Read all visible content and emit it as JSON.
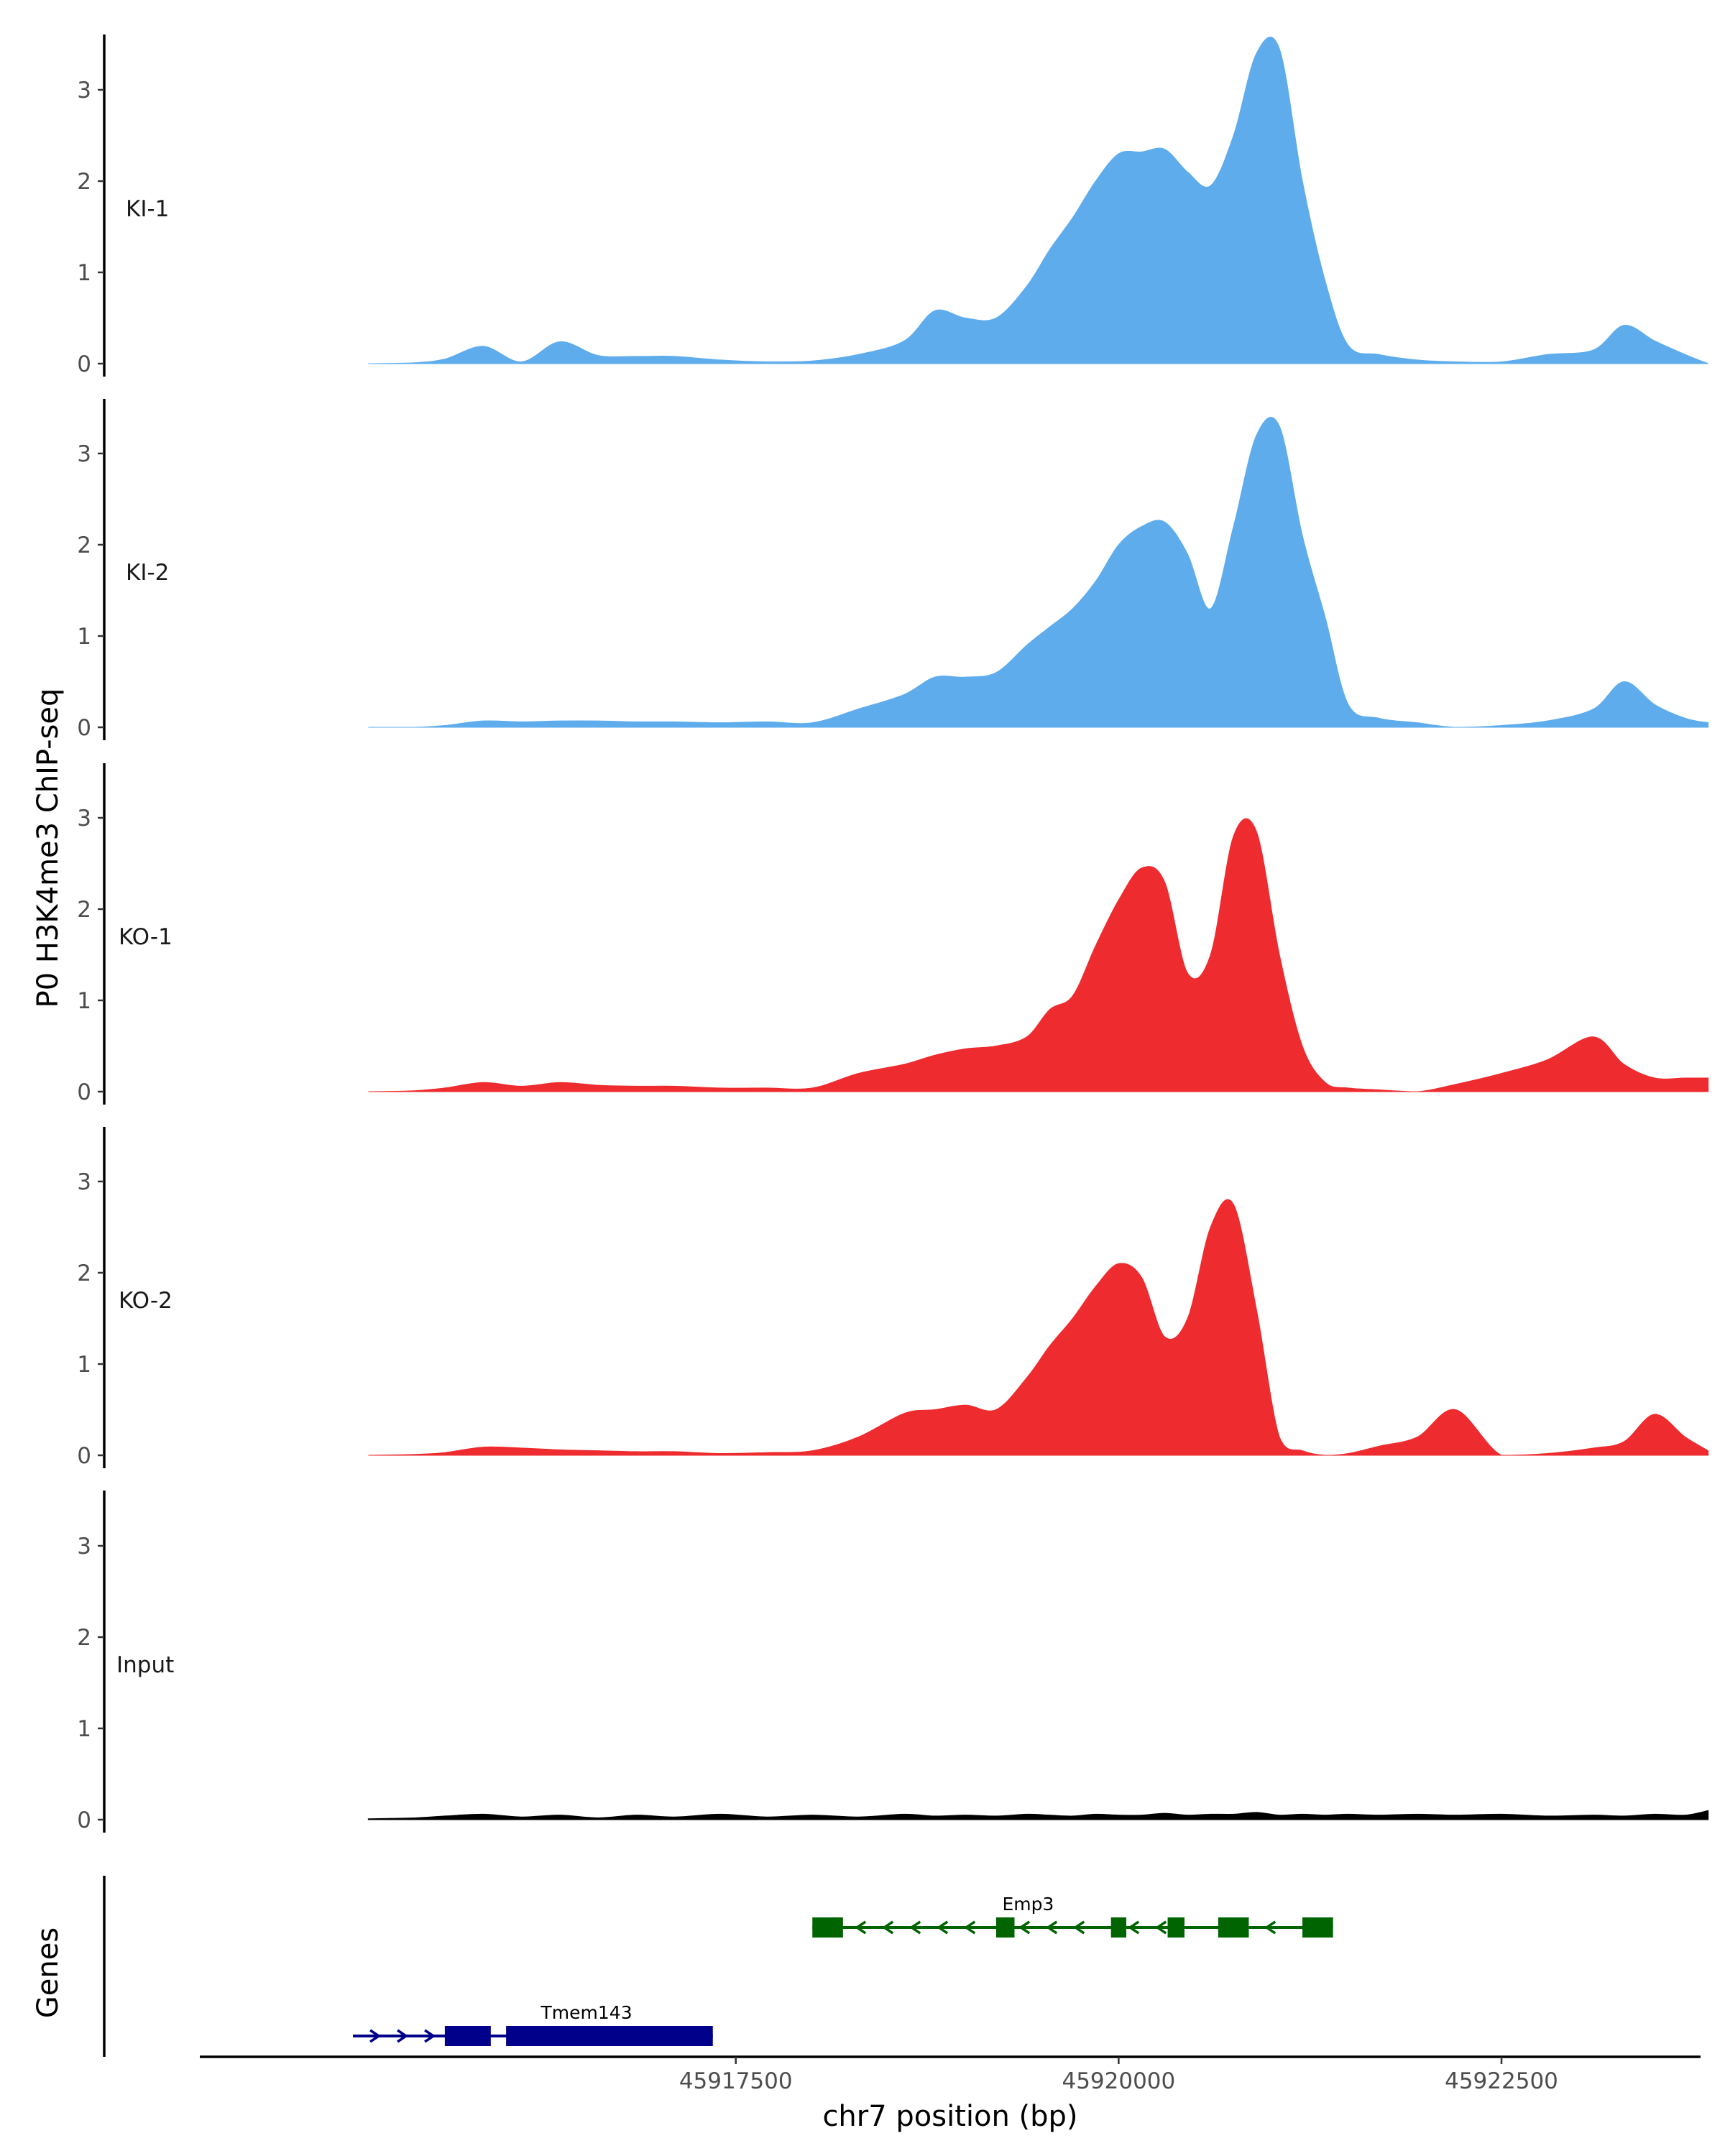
{
  "chart_data": {
    "type": "area",
    "chromosome": "chr7",
    "xlim": [
      45914000,
      45923800
    ],
    "ylim": [
      0,
      3.6
    ],
    "y_ticks": [
      "0",
      "1",
      "2",
      "3"
    ],
    "x_ticks": [
      {
        "value": 45917500,
        "label": "45917500"
      },
      {
        "value": 45920000,
        "label": "45920000"
      },
      {
        "value": 45922500,
        "label": "45922500"
      }
    ],
    "y_axis_title": "P0 H3K4me3 ChIP-seq",
    "x_axis_title": "chr7 position (bp)",
    "genes_axis_title": "Genes",
    "colors": {
      "KI": "#5eacec",
      "KO": "#ee2b2e",
      "Input": "#000000",
      "Emp3": "#006400",
      "Tmem143": "#00008b"
    },
    "x": [
      45915100,
      45915400,
      45915600,
      45915850,
      45916100,
      45916350,
      45916600,
      45916850,
      45917100,
      45917400,
      45917700,
      45918000,
      45918300,
      45918600,
      45918800,
      45919000,
      45919200,
      45919400,
      45919550,
      45919700,
      45919850,
      45920000,
      45920150,
      45920300,
      45920450,
      45920600,
      45920750,
      45920900,
      45921050,
      45921200,
      45921350,
      45921500,
      45921700,
      45921950,
      45922200,
      45922500,
      45922800,
      45923100,
      45923300,
      45923500,
      45923700,
      45923850
    ],
    "series": [
      {
        "name": "KI-1",
        "color": "#5eacec",
        "values": [
          0.0,
          0.01,
          0.05,
          0.19,
          0.02,
          0.24,
          0.09,
          0.08,
          0.08,
          0.04,
          0.02,
          0.03,
          0.1,
          0.25,
          0.58,
          0.5,
          0.5,
          0.85,
          1.25,
          1.6,
          2.0,
          2.3,
          2.32,
          2.35,
          2.1,
          1.95,
          2.5,
          3.4,
          3.45,
          2.0,
          0.9,
          0.2,
          0.1,
          0.04,
          0.02,
          0.02,
          0.1,
          0.15,
          0.42,
          0.25,
          0.1,
          0.0
        ]
      },
      {
        "name": "KI-2",
        "color": "#5eacec",
        "values": [
          0.0,
          0.0,
          0.02,
          0.07,
          0.06,
          0.07,
          0.07,
          0.06,
          0.06,
          0.05,
          0.06,
          0.05,
          0.2,
          0.36,
          0.55,
          0.55,
          0.6,
          0.9,
          1.1,
          1.3,
          1.6,
          2.0,
          2.2,
          2.25,
          1.9,
          1.3,
          2.2,
          3.2,
          3.3,
          2.1,
          1.2,
          0.25,
          0.1,
          0.05,
          0.0,
          0.02,
          0.07,
          0.2,
          0.5,
          0.25,
          0.1,
          0.05
        ]
      },
      {
        "name": "KO-1",
        "color": "#ee2b2e",
        "values": [
          0.0,
          0.01,
          0.04,
          0.1,
          0.06,
          0.1,
          0.07,
          0.06,
          0.06,
          0.04,
          0.04,
          0.04,
          0.2,
          0.3,
          0.4,
          0.47,
          0.5,
          0.6,
          0.9,
          1.05,
          1.6,
          2.1,
          2.45,
          2.3,
          1.3,
          1.5,
          2.8,
          2.85,
          1.5,
          0.5,
          0.1,
          0.04,
          0.02,
          0.0,
          0.08,
          0.2,
          0.35,
          0.6,
          0.3,
          0.15,
          0.15,
          0.15
        ]
      },
      {
        "name": "KO-2",
        "color": "#ee2b2e",
        "values": [
          0.0,
          0.01,
          0.03,
          0.09,
          0.08,
          0.06,
          0.05,
          0.04,
          0.04,
          0.02,
          0.03,
          0.05,
          0.2,
          0.46,
          0.5,
          0.55,
          0.5,
          0.85,
          1.2,
          1.5,
          1.85,
          2.1,
          1.95,
          1.3,
          1.5,
          2.5,
          2.75,
          1.6,
          0.2,
          0.05,
          0.0,
          0.02,
          0.1,
          0.2,
          0.5,
          0.0,
          0.02,
          0.08,
          0.15,
          0.45,
          0.2,
          0.05
        ]
      },
      {
        "name": "Input",
        "color": "#000000",
        "values": [
          0.01,
          0.02,
          0.04,
          0.06,
          0.03,
          0.05,
          0.02,
          0.05,
          0.03,
          0.06,
          0.03,
          0.05,
          0.03,
          0.06,
          0.04,
          0.05,
          0.04,
          0.06,
          0.05,
          0.04,
          0.06,
          0.05,
          0.05,
          0.07,
          0.05,
          0.06,
          0.06,
          0.08,
          0.05,
          0.06,
          0.05,
          0.06,
          0.05,
          0.06,
          0.05,
          0.06,
          0.04,
          0.05,
          0.04,
          0.06,
          0.05,
          0.1
        ]
      }
    ],
    "genes": [
      {
        "name": "Emp3",
        "strand": "-",
        "color": "#006400",
        "start": 45918000,
        "end": 45921400,
        "exons": [
          [
            45918000,
            45918200
          ],
          [
            45919200,
            45919320
          ],
          [
            45919950,
            45920050
          ],
          [
            45920320,
            45920430
          ],
          [
            45920650,
            45920850
          ],
          [
            45921200,
            45921400
          ]
        ]
      },
      {
        "name": "Tmem143",
        "strand": "+",
        "color": "#00008b",
        "start": 45915000,
        "end": 45917350,
        "exons": [
          [
            45915600,
            45915900
          ],
          [
            45916000,
            45917350
          ]
        ],
        "thin_exons": []
      }
    ]
  }
}
